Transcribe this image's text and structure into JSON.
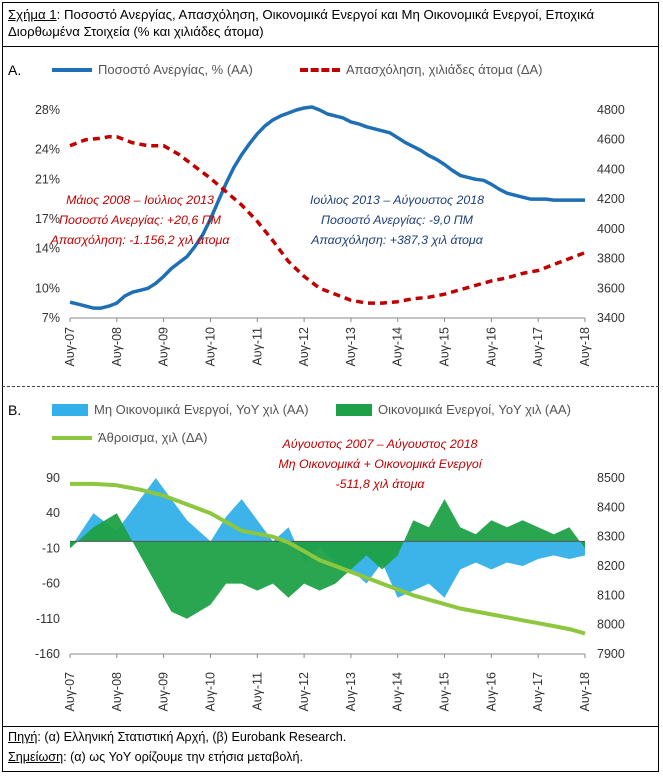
{
  "caption": {
    "prefix": "Σχήμα 1",
    "text": ": Ποσοστό Ανεργίας, Απασχόληση, Οικονομικά Ενεργοί και Μη Οικονομικά Ενεργοί, Εποχικά Διορθωμένα Στοιχεία (% και χιλιάδες άτομα)"
  },
  "panel_a": {
    "label": "A."
  },
  "panel_b": {
    "label": "B."
  },
  "colors": {
    "unemployment": "#1f6fb5",
    "employment": "#c00000",
    "inactive": "#33b0e8",
    "active": "#1ea146",
    "sum": "#8dc63f"
  },
  "chart_data": [
    {
      "type": "line",
      "legend_position": "top",
      "x_tick_labels": [
        "Αυγ-07",
        "Αυγ-08",
        "Αυγ-09",
        "Αυγ-10",
        "Αυγ-11",
        "Αυγ-12",
        "Αυγ-13",
        "Αυγ-14",
        "Αυγ-15",
        "Αυγ-16",
        "Αυγ-17",
        "Αυγ-18"
      ],
      "y_left": {
        "ticks": [
          "7%",
          "10%",
          "14%",
          "17%",
          "21%",
          "24%",
          "28%"
        ],
        "range": [
          7,
          28
        ]
      },
      "y_right": {
        "ticks": [
          "3400",
          "3600",
          "3800",
          "4000",
          "4200",
          "4400",
          "4600",
          "4800"
        ],
        "range": [
          3400,
          4800
        ]
      },
      "series": [
        {
          "name": "Ποσοστό Ανεργίας, % (ΑΑ)",
          "axis": "left",
          "points": [
            [
              0,
              8.6
            ],
            [
              2,
              8.4
            ],
            [
              4,
              8.2
            ],
            [
              6,
              8.0
            ],
            [
              8,
              8.0
            ],
            [
              10,
              8.2
            ],
            [
              12,
              8.5
            ],
            [
              14,
              9.2
            ],
            [
              16,
              9.6
            ],
            [
              18,
              9.8
            ],
            [
              20,
              10.0
            ],
            [
              22,
              10.5
            ],
            [
              24,
              11.2
            ],
            [
              26,
              12.0
            ],
            [
              28,
              12.6
            ],
            [
              30,
              13.2
            ],
            [
              32,
              14.2
            ],
            [
              34,
              15.4
            ],
            [
              36,
              17.0
            ],
            [
              38,
              18.8
            ],
            [
              40,
              20.6
            ],
            [
              42,
              22.2
            ],
            [
              44,
              23.5
            ],
            [
              46,
              24.6
            ],
            [
              48,
              25.6
            ],
            [
              50,
              26.4
            ],
            [
              52,
              27.0
            ],
            [
              54,
              27.4
            ],
            [
              56,
              27.7
            ],
            [
              58,
              28.0
            ],
            [
              60,
              28.2
            ],
            [
              62,
              28.3
            ],
            [
              64,
              28.0
            ],
            [
              66,
              27.6
            ],
            [
              68,
              27.4
            ],
            [
              70,
              27.2
            ],
            [
              72,
              26.8
            ],
            [
              74,
              26.6
            ],
            [
              76,
              26.3
            ],
            [
              78,
              26.1
            ],
            [
              80,
              25.9
            ],
            [
              82,
              25.7
            ],
            [
              84,
              25.2
            ],
            [
              86,
              24.7
            ],
            [
              88,
              24.3
            ],
            [
              90,
              23.9
            ],
            [
              92,
              23.4
            ],
            [
              94,
              23.0
            ],
            [
              96,
              22.5
            ],
            [
              98,
              21.9
            ],
            [
              100,
              21.4
            ],
            [
              102,
              21.2
            ],
            [
              104,
              21.0
            ],
            [
              106,
              20.9
            ],
            [
              108,
              20.5
            ],
            [
              110,
              20.0
            ],
            [
              112,
              19.6
            ],
            [
              114,
              19.4
            ],
            [
              116,
              19.2
            ],
            [
              118,
              19.0
            ],
            [
              120,
              19.0
            ],
            [
              122,
              19.0
            ],
            [
              124,
              18.9
            ],
            [
              126,
              18.9
            ],
            [
              128,
              18.9
            ],
            [
              130,
              18.9
            ],
            [
              132,
              18.9
            ]
          ]
        },
        {
          "name": "Απασχόληση, χιλιάδες άτομα (ΔΑ)",
          "axis": "right",
          "points": [
            [
              0,
              4560
            ],
            [
              4,
              4600
            ],
            [
              8,
              4610
            ],
            [
              10,
              4620
            ],
            [
              12,
              4620
            ],
            [
              16,
              4580
            ],
            [
              20,
              4560
            ],
            [
              24,
              4560
            ],
            [
              28,
              4500
            ],
            [
              32,
              4420
            ],
            [
              36,
              4340
            ],
            [
              40,
              4250
            ],
            [
              44,
              4160
            ],
            [
              48,
              4050
            ],
            [
              52,
              3920
            ],
            [
              56,
              3780
            ],
            [
              60,
              3680
            ],
            [
              64,
              3600
            ],
            [
              68,
              3560
            ],
            [
              72,
              3520
            ],
            [
              76,
              3500
            ],
            [
              80,
              3500
            ],
            [
              84,
              3510
            ],
            [
              88,
              3530
            ],
            [
              92,
              3540
            ],
            [
              96,
              3560
            ],
            [
              100,
              3590
            ],
            [
              104,
              3620
            ],
            [
              108,
              3650
            ],
            [
              112,
              3670
            ],
            [
              116,
              3700
            ],
            [
              120,
              3720
            ],
            [
              124,
              3760
            ],
            [
              128,
              3800
            ],
            [
              132,
              3840
            ]
          ]
        }
      ],
      "annotations": [
        {
          "lines": [
            "Μάιος 2008 – Ιούλιος 2013",
            "Ποσοστό Ανεργίας: +20,6 ΠΜ",
            "Απασχόληση: -1.156,2 χιλ άτομα"
          ],
          "color": "#c00000"
        },
        {
          "lines": [
            "Ιούλιος 2013 – Αύγουστος 2018",
            "Ποσοστό Ανεργίας: -9,0 ΠΜ",
            "Απασχόληση: +387,3 χιλ άτομα"
          ],
          "color": "#1f3f7a"
        }
      ]
    },
    {
      "type": "area",
      "legend_position": "top",
      "x_tick_labels": [
        "Αυγ-07",
        "Αυγ-08",
        "Αυγ-09",
        "Αυγ-10",
        "Αυγ-11",
        "Αυγ-12",
        "Αυγ-13",
        "Αυγ-14",
        "Αυγ-15",
        "Αυγ-16",
        "Αυγ-17",
        "Αυγ-18"
      ],
      "y_left": {
        "ticks": [
          "-160",
          "-110",
          "-60",
          "-10",
          "40",
          "90"
        ],
        "range": [
          -160,
          90
        ]
      },
      "y_right": {
        "ticks": [
          "7900",
          "8000",
          "8100",
          "8200",
          "8300",
          "8400",
          "8500"
        ],
        "range": [
          7900,
          8500
        ]
      },
      "series": [
        {
          "name": "Μη Οικονομικά Ενεργοί, YoY χιλ (ΑΑ)",
          "axis": "left",
          "type": "area",
          "points": [
            [
              0,
              -10
            ],
            [
              6,
              40
            ],
            [
              12,
              15
            ],
            [
              18,
              60
            ],
            [
              22,
              90
            ],
            [
              26,
              60
            ],
            [
              30,
              30
            ],
            [
              36,
              0
            ],
            [
              40,
              35
            ],
            [
              44,
              60
            ],
            [
              48,
              30
            ],
            [
              52,
              0
            ],
            [
              56,
              20
            ],
            [
              60,
              -30
            ],
            [
              64,
              -10
            ],
            [
              68,
              -30
            ],
            [
              72,
              -40
            ],
            [
              76,
              -60
            ],
            [
              80,
              -30
            ],
            [
              84,
              -80
            ],
            [
              88,
              -70
            ],
            [
              92,
              -60
            ],
            [
              96,
              -80
            ],
            [
              100,
              -40
            ],
            [
              104,
              -30
            ],
            [
              108,
              -40
            ],
            [
              112,
              -30
            ],
            [
              116,
              -35
            ],
            [
              120,
              -25
            ],
            [
              124,
              -20
            ],
            [
              128,
              -25
            ],
            [
              132,
              -20
            ]
          ]
        },
        {
          "name": "Οικονομικά Ενεργοί, YoY χιλ (ΑΑ)",
          "axis": "left",
          "type": "area",
          "points": [
            [
              0,
              -10
            ],
            [
              6,
              20
            ],
            [
              12,
              40
            ],
            [
              18,
              -20
            ],
            [
              22,
              -60
            ],
            [
              26,
              -100
            ],
            [
              30,
              -110
            ],
            [
              36,
              -90
            ],
            [
              40,
              -60
            ],
            [
              44,
              -60
            ],
            [
              48,
              -70
            ],
            [
              52,
              -60
            ],
            [
              56,
              -80
            ],
            [
              60,
              -60
            ],
            [
              64,
              -70
            ],
            [
              68,
              -60
            ],
            [
              72,
              -40
            ],
            [
              76,
              -20
            ],
            [
              80,
              -40
            ],
            [
              84,
              -20
            ],
            [
              88,
              30
            ],
            [
              92,
              20
            ],
            [
              96,
              60
            ],
            [
              100,
              20
            ],
            [
              104,
              10
            ],
            [
              108,
              30
            ],
            [
              112,
              20
            ],
            [
              116,
              30
            ],
            [
              120,
              20
            ],
            [
              124,
              10
            ],
            [
              128,
              20
            ],
            [
              132,
              -10
            ]
          ]
        },
        {
          "name": "Άθροισμα, χιλ (ΔΑ)",
          "axis": "right",
          "type": "line",
          "points": [
            [
              0,
              8480
            ],
            [
              6,
              8480
            ],
            [
              12,
              8475
            ],
            [
              18,
              8460
            ],
            [
              24,
              8440
            ],
            [
              30,
              8410
            ],
            [
              36,
              8380
            ],
            [
              40,
              8350
            ],
            [
              44,
              8320
            ],
            [
              48,
              8310
            ],
            [
              52,
              8300
            ],
            [
              56,
              8280
            ],
            [
              60,
              8250
            ],
            [
              64,
              8220
            ],
            [
              68,
              8200
            ],
            [
              72,
              8180
            ],
            [
              76,
              8160
            ],
            [
              80,
              8140
            ],
            [
              84,
              8120
            ],
            [
              88,
              8100
            ],
            [
              92,
              8085
            ],
            [
              96,
              8070
            ],
            [
              100,
              8055
            ],
            [
              104,
              8045
            ],
            [
              108,
              8035
            ],
            [
              112,
              8025
            ],
            [
              116,
              8015
            ],
            [
              120,
              8005
            ],
            [
              124,
              7995
            ],
            [
              128,
              7985
            ],
            [
              132,
              7970
            ]
          ]
        }
      ],
      "annotations": [
        {
          "lines": [
            "Αύγουστος 2007 – Αύγουστος 2018",
            "Μη Οικονομικά + Οικονομικά Ενεργοί",
            "-511,8 χιλ άτομα"
          ],
          "color": "#c00000"
        }
      ]
    }
  ],
  "source": {
    "label": "Πηγή",
    "text": ": (α) Ελληνική Στατιστική Αρχή, (β) Eurobank Research."
  },
  "note": {
    "label": "Σημείωση",
    "text": ": (α) ως YoY ορίζουμε την ετήσια μεταβολή."
  }
}
